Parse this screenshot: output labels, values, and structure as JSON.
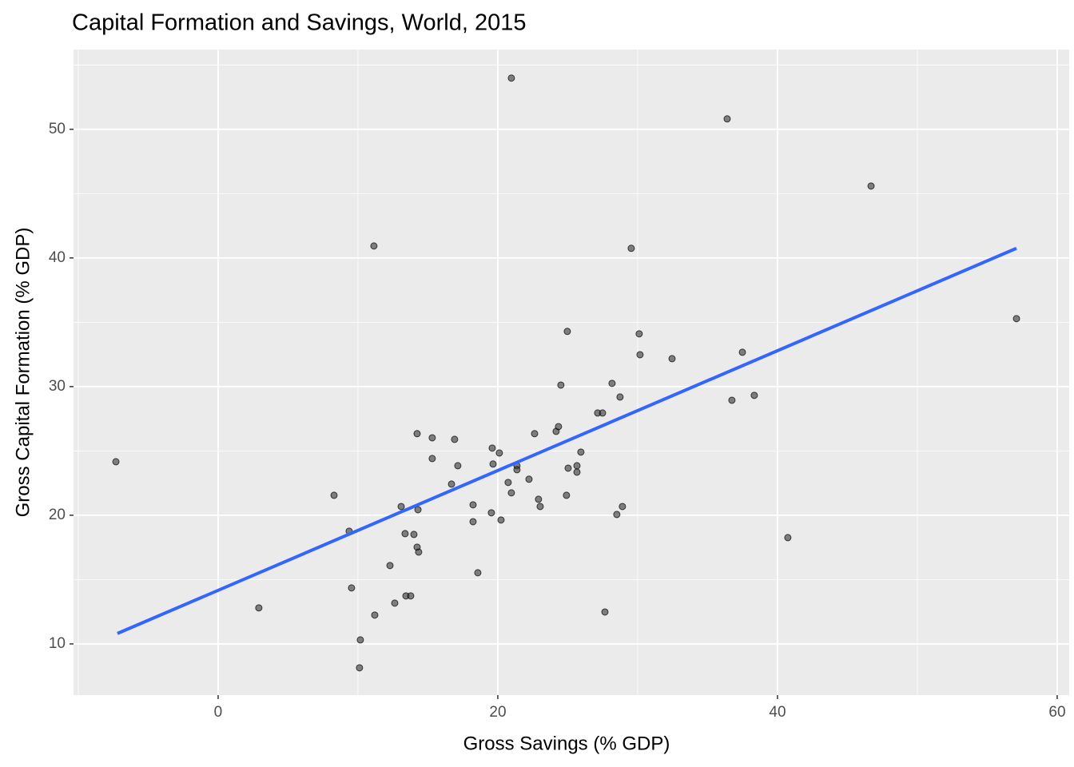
{
  "chart_data": {
    "type": "scatter",
    "title": "Capital Formation and Savings, World, 2015",
    "x_label": "Gross Savings (% GDP)",
    "y_label": "Gross Capital Formation (% GDP)",
    "x": [
      -7.31,
      2.91,
      8.29,
      9.37,
      9.54,
      10.17,
      10.11,
      11.14,
      11.2,
      12.29,
      12.63,
      13.09,
      13.37,
      13.43,
      13.77,
      14.0,
      14.23,
      14.23,
      14.29,
      14.34,
      15.31,
      15.31,
      16.69,
      16.91,
      17.14,
      18.23,
      18.23,
      18.57,
      19.54,
      19.6,
      19.66,
      20.11,
      20.23,
      20.74,
      20.97,
      20.97,
      21.37,
      21.37,
      22.23,
      22.63,
      22.91,
      23.03,
      24.17,
      24.34,
      24.51,
      24.91,
      24.97,
      25.03,
      25.66,
      25.66,
      25.94,
      27.14,
      27.49,
      27.66,
      28.17,
      28.51,
      28.74,
      28.91,
      29.54,
      30.11,
      30.17,
      32.46,
      36.4,
      36.74,
      37.49,
      38.34,
      40.74,
      46.69,
      57.09
    ],
    "values": [
      24.16,
      12.8,
      21.55,
      18.76,
      14.35,
      10.31,
      8.14,
      40.93,
      12.24,
      16.09,
      13.17,
      20.68,
      18.57,
      13.73,
      13.73,
      18.51,
      26.34,
      17.52,
      20.43,
      17.14,
      26.02,
      24.41,
      22.42,
      25.9,
      23.85,
      20.81,
      19.5,
      15.53,
      20.19,
      25.22,
      23.98,
      24.84,
      19.63,
      22.55,
      53.98,
      21.74,
      23.85,
      23.54,
      22.8,
      26.34,
      21.24,
      20.68,
      26.52,
      26.89,
      30.12,
      21.55,
      34.29,
      23.66,
      23.85,
      23.35,
      24.91,
      27.95,
      27.95,
      12.48,
      30.25,
      20.06,
      29.19,
      20.68,
      40.75,
      34.1,
      32.48,
      32.17,
      50.81,
      28.94,
      32.67,
      29.32,
      18.26,
      45.59,
      35.28
    ],
    "color": "#333333",
    "trend": {
      "x": [
        -7.2,
        57.09
      ],
      "values": [
        10.81,
        40.75
      ],
      "color": "#3366ff"
    },
    "xlim": [
      -10.34,
      60.86
    ],
    "xticks": [
      0,
      20,
      40,
      60
    ],
    "ylim": [
      6.02,
      56.2
    ],
    "yticks": [
      10,
      20,
      30,
      40,
      50
    ],
    "grid": true
  }
}
